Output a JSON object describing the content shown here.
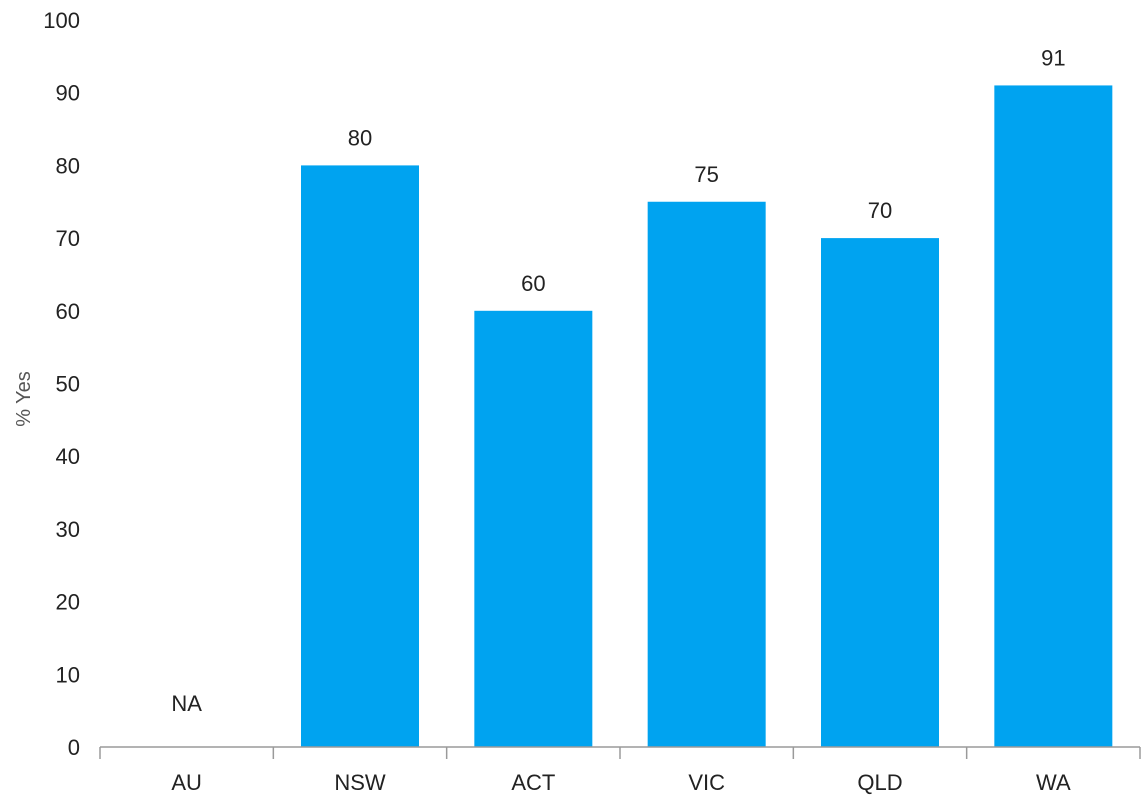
{
  "chart_data": {
    "type": "bar",
    "categories": [
      "AU",
      "NSW",
      "ACT",
      "VIC",
      "QLD",
      "WA"
    ],
    "values": [
      null,
      80,
      60,
      75,
      70,
      91
    ],
    "data_labels": [
      "NA",
      "80",
      "60",
      "75",
      "70",
      "91"
    ],
    "ylabel": "% Yes",
    "xlabel": "",
    "ylim": [
      0,
      100
    ],
    "yticks": [
      "0",
      "10",
      "20",
      "30",
      "40",
      "50",
      "60",
      "70",
      "80",
      "90",
      "100"
    ],
    "grid": false,
    "bar_color": "#00a3f0"
  }
}
